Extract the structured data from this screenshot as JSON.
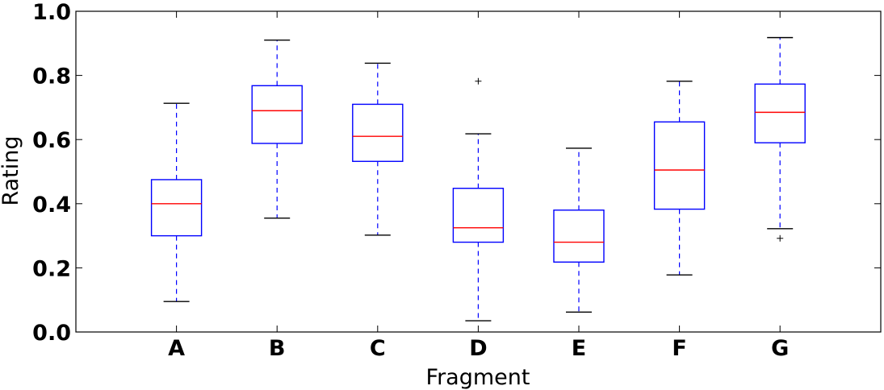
{
  "chart_data": {
    "type": "boxplot",
    "title": "",
    "xlabel": "Fragment",
    "ylabel": "Rating",
    "ylim": [
      0.0,
      1.0
    ],
    "yticks": [
      0.0,
      0.2,
      0.4,
      0.6,
      0.8,
      1.0
    ],
    "ytick_labels": [
      "0.0",
      "0.2",
      "0.4",
      "0.6",
      "0.8",
      "1.0"
    ],
    "grid": false,
    "categories": [
      "A",
      "B",
      "C",
      "D",
      "E",
      "F",
      "G"
    ],
    "boxes": [
      {
        "category": "A",
        "whisker_low": 0.095,
        "q1": 0.3,
        "median": 0.4,
        "q3": 0.475,
        "whisker_high": 0.713,
        "outliers": []
      },
      {
        "category": "B",
        "whisker_low": 0.355,
        "q1": 0.588,
        "median": 0.69,
        "q3": 0.768,
        "whisker_high": 0.91,
        "outliers": []
      },
      {
        "category": "C",
        "whisker_low": 0.302,
        "q1": 0.532,
        "median": 0.61,
        "q3": 0.71,
        "whisker_high": 0.838,
        "outliers": []
      },
      {
        "category": "D",
        "whisker_low": 0.035,
        "q1": 0.28,
        "median": 0.325,
        "q3": 0.448,
        "whisker_high": 0.618,
        "outliers": [
          0.782
        ]
      },
      {
        "category": "E",
        "whisker_low": 0.062,
        "q1": 0.218,
        "median": 0.28,
        "q3": 0.38,
        "whisker_high": 0.573,
        "outliers": []
      },
      {
        "category": "F",
        "whisker_low": 0.178,
        "q1": 0.383,
        "median": 0.505,
        "q3": 0.655,
        "whisker_high": 0.782,
        "outliers": []
      },
      {
        "category": "G",
        "whisker_low": 0.322,
        "q1": 0.59,
        "median": 0.685,
        "q3": 0.773,
        "whisker_high": 0.918,
        "outliers": [
          0.292
        ]
      }
    ],
    "colors": {
      "box": "#0000ff",
      "median": "#ff0000",
      "whisker": "#0000ff",
      "cap": "#000000",
      "outlier": "#000000"
    }
  }
}
